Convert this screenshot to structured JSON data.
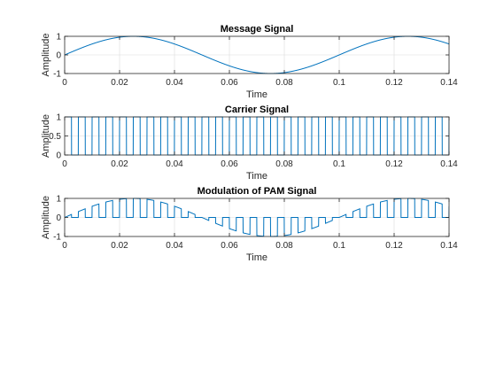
{
  "chart_data": [
    {
      "type": "line",
      "title": "Message Signal",
      "xlabel": "Time",
      "ylabel": "Amplitude",
      "xlim": [
        0,
        0.14
      ],
      "ylim": [
        -1,
        1
      ],
      "xticks": [
        0,
        0.02,
        0.04,
        0.06,
        0.08,
        0.1,
        0.12,
        0.14
      ],
      "xtick_labels": [
        "0",
        "0.02",
        "0.04",
        "0.06",
        "0.08",
        "0.1",
        "0.12",
        "0.14"
      ],
      "yticks": [
        -1,
        0,
        1
      ],
      "ytick_labels": [
        "-1",
        "0",
        "1"
      ],
      "grid": true,
      "color": "#0072BD",
      "signal": {
        "kind": "sine",
        "amplitude": 1,
        "frequency_hz": 10,
        "phase": 0
      },
      "series": [
        {
          "x": [
            0,
            0.005,
            0.01,
            0.015,
            0.02,
            0.025,
            0.03,
            0.035,
            0.04,
            0.045,
            0.05,
            0.055,
            0.06,
            0.065,
            0.07,
            0.075,
            0.08,
            0.085,
            0.09,
            0.095,
            0.1,
            0.105,
            0.11,
            0.115,
            0.12,
            0.125,
            0.13,
            0.135,
            0.14
          ],
          "values": [
            0,
            0.31,
            0.59,
            0.81,
            0.95,
            1,
            0.95,
            0.81,
            0.59,
            0.31,
            0,
            -0.31,
            -0.59,
            -0.81,
            -0.95,
            -1,
            -0.95,
            -0.81,
            -0.59,
            -0.31,
            0,
            0.31,
            0.59,
            0.81,
            0.95,
            1,
            0.95,
            0.81,
            0.59
          ]
        }
      ]
    },
    {
      "type": "line",
      "title": "Carrier Signal",
      "xlabel": "Time",
      "ylabel": "Amplitude",
      "xlim": [
        0,
        0.14
      ],
      "ylim": [
        0,
        1
      ],
      "xticks": [
        0,
        0.02,
        0.04,
        0.06,
        0.08,
        0.1,
        0.12,
        0.14
      ],
      "xtick_labels": [
        "0",
        "0.02",
        "0.04",
        "0.06",
        "0.08",
        "0.1",
        "0.12",
        "0.14"
      ],
      "yticks": [
        0,
        0.5,
        1
      ],
      "ytick_labels": [
        "0",
        "0.5",
        "1"
      ],
      "grid": true,
      "color": "#0072BD",
      "signal": {
        "kind": "pulse_train",
        "amplitude": 1,
        "frequency_hz": 200,
        "duty_cycle": 0.5
      }
    },
    {
      "type": "line",
      "title": "Modulation of PAM Signal",
      "xlabel": "Time",
      "ylabel": "Amplitude",
      "xlim": [
        0,
        0.14
      ],
      "ylim": [
        -1,
        1
      ],
      "xticks": [
        0,
        0.02,
        0.04,
        0.06,
        0.08,
        0.1,
        0.12,
        0.14
      ],
      "xtick_labels": [
        "0",
        "0.02",
        "0.04",
        "0.06",
        "0.08",
        "0.1",
        "0.12",
        "0.14"
      ],
      "yticks": [
        -1,
        0,
        1
      ],
      "ytick_labels": [
        "-1",
        "0",
        "1"
      ],
      "grid": true,
      "color": "#0072BD",
      "signal": {
        "kind": "natural_pam",
        "message_frequency_hz": 10,
        "carrier_frequency_hz": 200,
        "duty_cycle": 0.5
      }
    }
  ]
}
